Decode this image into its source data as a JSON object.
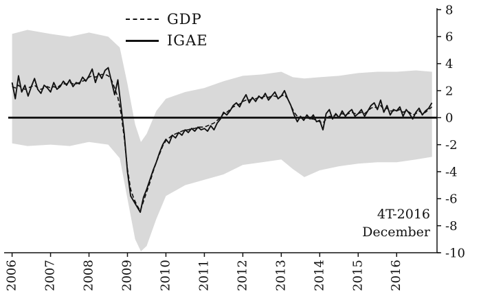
{
  "annotation": {
    "line1": "4T-2016",
    "line2": "December"
  },
  "chart_data": {
    "type": "line",
    "title": "",
    "xlabel": "",
    "ylabel": "",
    "xlim": [
      2005.9,
      2017.05
    ],
    "ylim": [
      -10,
      8
    ],
    "grid": false,
    "legend_position": "top-left-inside",
    "zero_line": true,
    "x_start": 2006.0,
    "x_step": 0.0833333,
    "x_tick_labels": [
      "2006",
      "2007",
      "2008",
      "2009",
      "2010",
      "2011",
      "2012",
      "2013",
      "2014",
      "2015",
      "2016"
    ],
    "y_tick_labels": [
      "8",
      "6",
      "4",
      "2",
      "0",
      "-2",
      "-4",
      "-6",
      "-8",
      "-10"
    ],
    "colors": {
      "line": "#111111",
      "band": "#d9d9d9"
    },
    "series": [
      {
        "name": "GDP",
        "style": "dashed",
        "values": [
          2.3,
          2.2,
          2.4,
          2.2,
          2.1,
          2.2,
          2.3,
          2.4,
          2.2,
          2.1,
          2.2,
          2.3,
          2.2,
          2.3,
          2.2,
          2.4,
          2.5,
          2.5,
          2.6,
          2.5,
          2.5,
          2.6,
          2.7,
          2.8,
          3.0,
          3.1,
          3.0,
          3.1,
          3.2,
          3.2,
          3.1,
          2.8,
          2.2,
          1.5,
          0.3,
          -1.5,
          -3.8,
          -5.3,
          -6.0,
          -6.5,
          -6.9,
          -6.2,
          -5.5,
          -4.8,
          -4.0,
          -3.3,
          -2.7,
          -2.1,
          -1.7,
          -1.5,
          -1.3,
          -1.2,
          -1.1,
          -1.0,
          -0.9,
          -0.9,
          -0.8,
          -0.8,
          -0.7,
          -0.7,
          -0.7,
          -0.6,
          -0.5,
          -0.4,
          -0.2,
          0.0,
          0.3,
          0.4,
          0.6,
          0.8,
          0.9,
          1.0,
          1.2,
          1.3,
          1.3,
          1.4,
          1.4,
          1.5,
          1.5,
          1.6,
          1.5,
          1.6,
          1.6,
          1.5,
          1.6,
          1.7,
          1.4,
          0.9,
          0.4,
          0.1,
          0.0,
          -0.1,
          0.0,
          -0.1,
          -0.1,
          -0.2,
          -0.3,
          -0.4,
          -0.1,
          0.1,
          0.1,
          0.2,
          0.2,
          0.3,
          0.2,
          0.3,
          0.4,
          0.3,
          0.3,
          0.4,
          0.3,
          0.5,
          0.7,
          0.8,
          0.7,
          0.9,
          0.6,
          0.7,
          0.5,
          0.5,
          0.5,
          0.6,
          0.4,
          0.5,
          0.4,
          0.2,
          0.3,
          0.5,
          0.3,
          0.4,
          0.6,
          0.8
        ]
      },
      {
        "name": "IGAE",
        "style": "solid",
        "values": [
          2.6,
          1.4,
          3.1,
          1.9,
          2.4,
          1.6,
          2.3,
          2.9,
          2.1,
          1.8,
          2.4,
          2.2,
          1.9,
          2.6,
          2.1,
          2.3,
          2.7,
          2.4,
          2.8,
          2.3,
          2.6,
          2.5,
          3.0,
          2.7,
          3.1,
          3.6,
          2.6,
          3.3,
          2.9,
          3.5,
          3.7,
          2.7,
          1.7,
          2.8,
          0.8,
          -1.2,
          -4.0,
          -5.8,
          -6.2,
          -6.6,
          -7.0,
          -5.9,
          -5.3,
          -4.6,
          -3.9,
          -3.3,
          -2.6,
          -2.0,
          -1.6,
          -1.9,
          -1.3,
          -1.5,
          -1.1,
          -1.3,
          -0.9,
          -1.1,
          -0.8,
          -1.0,
          -0.7,
          -0.9,
          -0.8,
          -1.0,
          -0.6,
          -0.9,
          -0.4,
          -0.1,
          0.4,
          0.2,
          0.5,
          0.9,
          1.1,
          0.8,
          1.3,
          1.7,
          1.1,
          1.5,
          1.2,
          1.6,
          1.4,
          1.8,
          1.3,
          1.6,
          1.9,
          1.4,
          1.6,
          2.0,
          1.4,
          0.9,
          0.2,
          -0.3,
          0.1,
          -0.2,
          0.2,
          -0.1,
          0.2,
          -0.3,
          -0.2,
          -0.9,
          0.3,
          0.6,
          -0.1,
          0.3,
          0.0,
          0.5,
          0.1,
          0.4,
          0.6,
          0.1,
          0.3,
          0.6,
          0.1,
          0.5,
          0.9,
          1.1,
          0.6,
          1.3,
          0.4,
          0.9,
          0.2,
          0.6,
          0.5,
          0.8,
          0.1,
          0.6,
          0.3,
          -0.1,
          0.4,
          0.7,
          0.2,
          0.5,
          0.7,
          1.1
        ]
      }
    ],
    "band": {
      "name": "confidence-band",
      "color": "#d9d9d9",
      "points": [
        {
          "x": 2006.0,
          "u": 6.2,
          "l": -1.9
        },
        {
          "x": 2006.4,
          "u": 6.5,
          "l": -2.1
        },
        {
          "x": 2007.0,
          "u": 6.2,
          "l": -2.0
        },
        {
          "x": 2007.5,
          "u": 6.0,
          "l": -2.1
        },
        {
          "x": 2008.0,
          "u": 6.3,
          "l": -1.8
        },
        {
          "x": 2008.5,
          "u": 6.0,
          "l": -2.0
        },
        {
          "x": 2008.8,
          "u": 5.2,
          "l": -3.0
        },
        {
          "x": 2009.0,
          "u": 2.5,
          "l": -6.0
        },
        {
          "x": 2009.2,
          "u": -0.5,
          "l": -9.0
        },
        {
          "x": 2009.35,
          "u": -1.8,
          "l": -9.9
        },
        {
          "x": 2009.5,
          "u": -1.2,
          "l": -9.5
        },
        {
          "x": 2009.75,
          "u": 0.5,
          "l": -7.5
        },
        {
          "x": 2010.0,
          "u": 1.4,
          "l": -5.8
        },
        {
          "x": 2010.5,
          "u": 1.9,
          "l": -5.0
        },
        {
          "x": 2011.0,
          "u": 2.2,
          "l": -4.6
        },
        {
          "x": 2011.5,
          "u": 2.7,
          "l": -4.2
        },
        {
          "x": 2012.0,
          "u": 3.1,
          "l": -3.5
        },
        {
          "x": 2012.5,
          "u": 3.2,
          "l": -3.3
        },
        {
          "x": 2013.0,
          "u": 3.4,
          "l": -3.1
        },
        {
          "x": 2013.3,
          "u": 3.0,
          "l": -3.8
        },
        {
          "x": 2013.6,
          "u": 2.9,
          "l": -4.4
        },
        {
          "x": 2014.0,
          "u": 3.0,
          "l": -3.9
        },
        {
          "x": 2014.5,
          "u": 3.1,
          "l": -3.6
        },
        {
          "x": 2015.0,
          "u": 3.3,
          "l": -3.4
        },
        {
          "x": 2015.5,
          "u": 3.4,
          "l": -3.3
        },
        {
          "x": 2016.0,
          "u": 3.4,
          "l": -3.3
        },
        {
          "x": 2016.5,
          "u": 3.5,
          "l": -3.1
        },
        {
          "x": 2016.92,
          "u": 3.4,
          "l": -2.9
        }
      ]
    }
  }
}
